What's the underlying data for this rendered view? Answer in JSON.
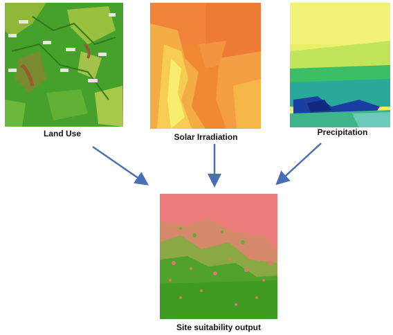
{
  "inputs": [
    {
      "label": "Land Use"
    },
    {
      "label": "Solar Irradiation"
    },
    {
      "label": "Precipitation"
    }
  ],
  "output": {
    "label": "Site suitability output"
  },
  "colors": {
    "arrow": "#4a6fb5",
    "land_use_base": "#3f9a28",
    "solar_base": "#f09a3a",
    "precip_base": "#e6f06a",
    "suitability_top": "#ec7b7b",
    "suitability_bottom": "#3f9a22"
  }
}
